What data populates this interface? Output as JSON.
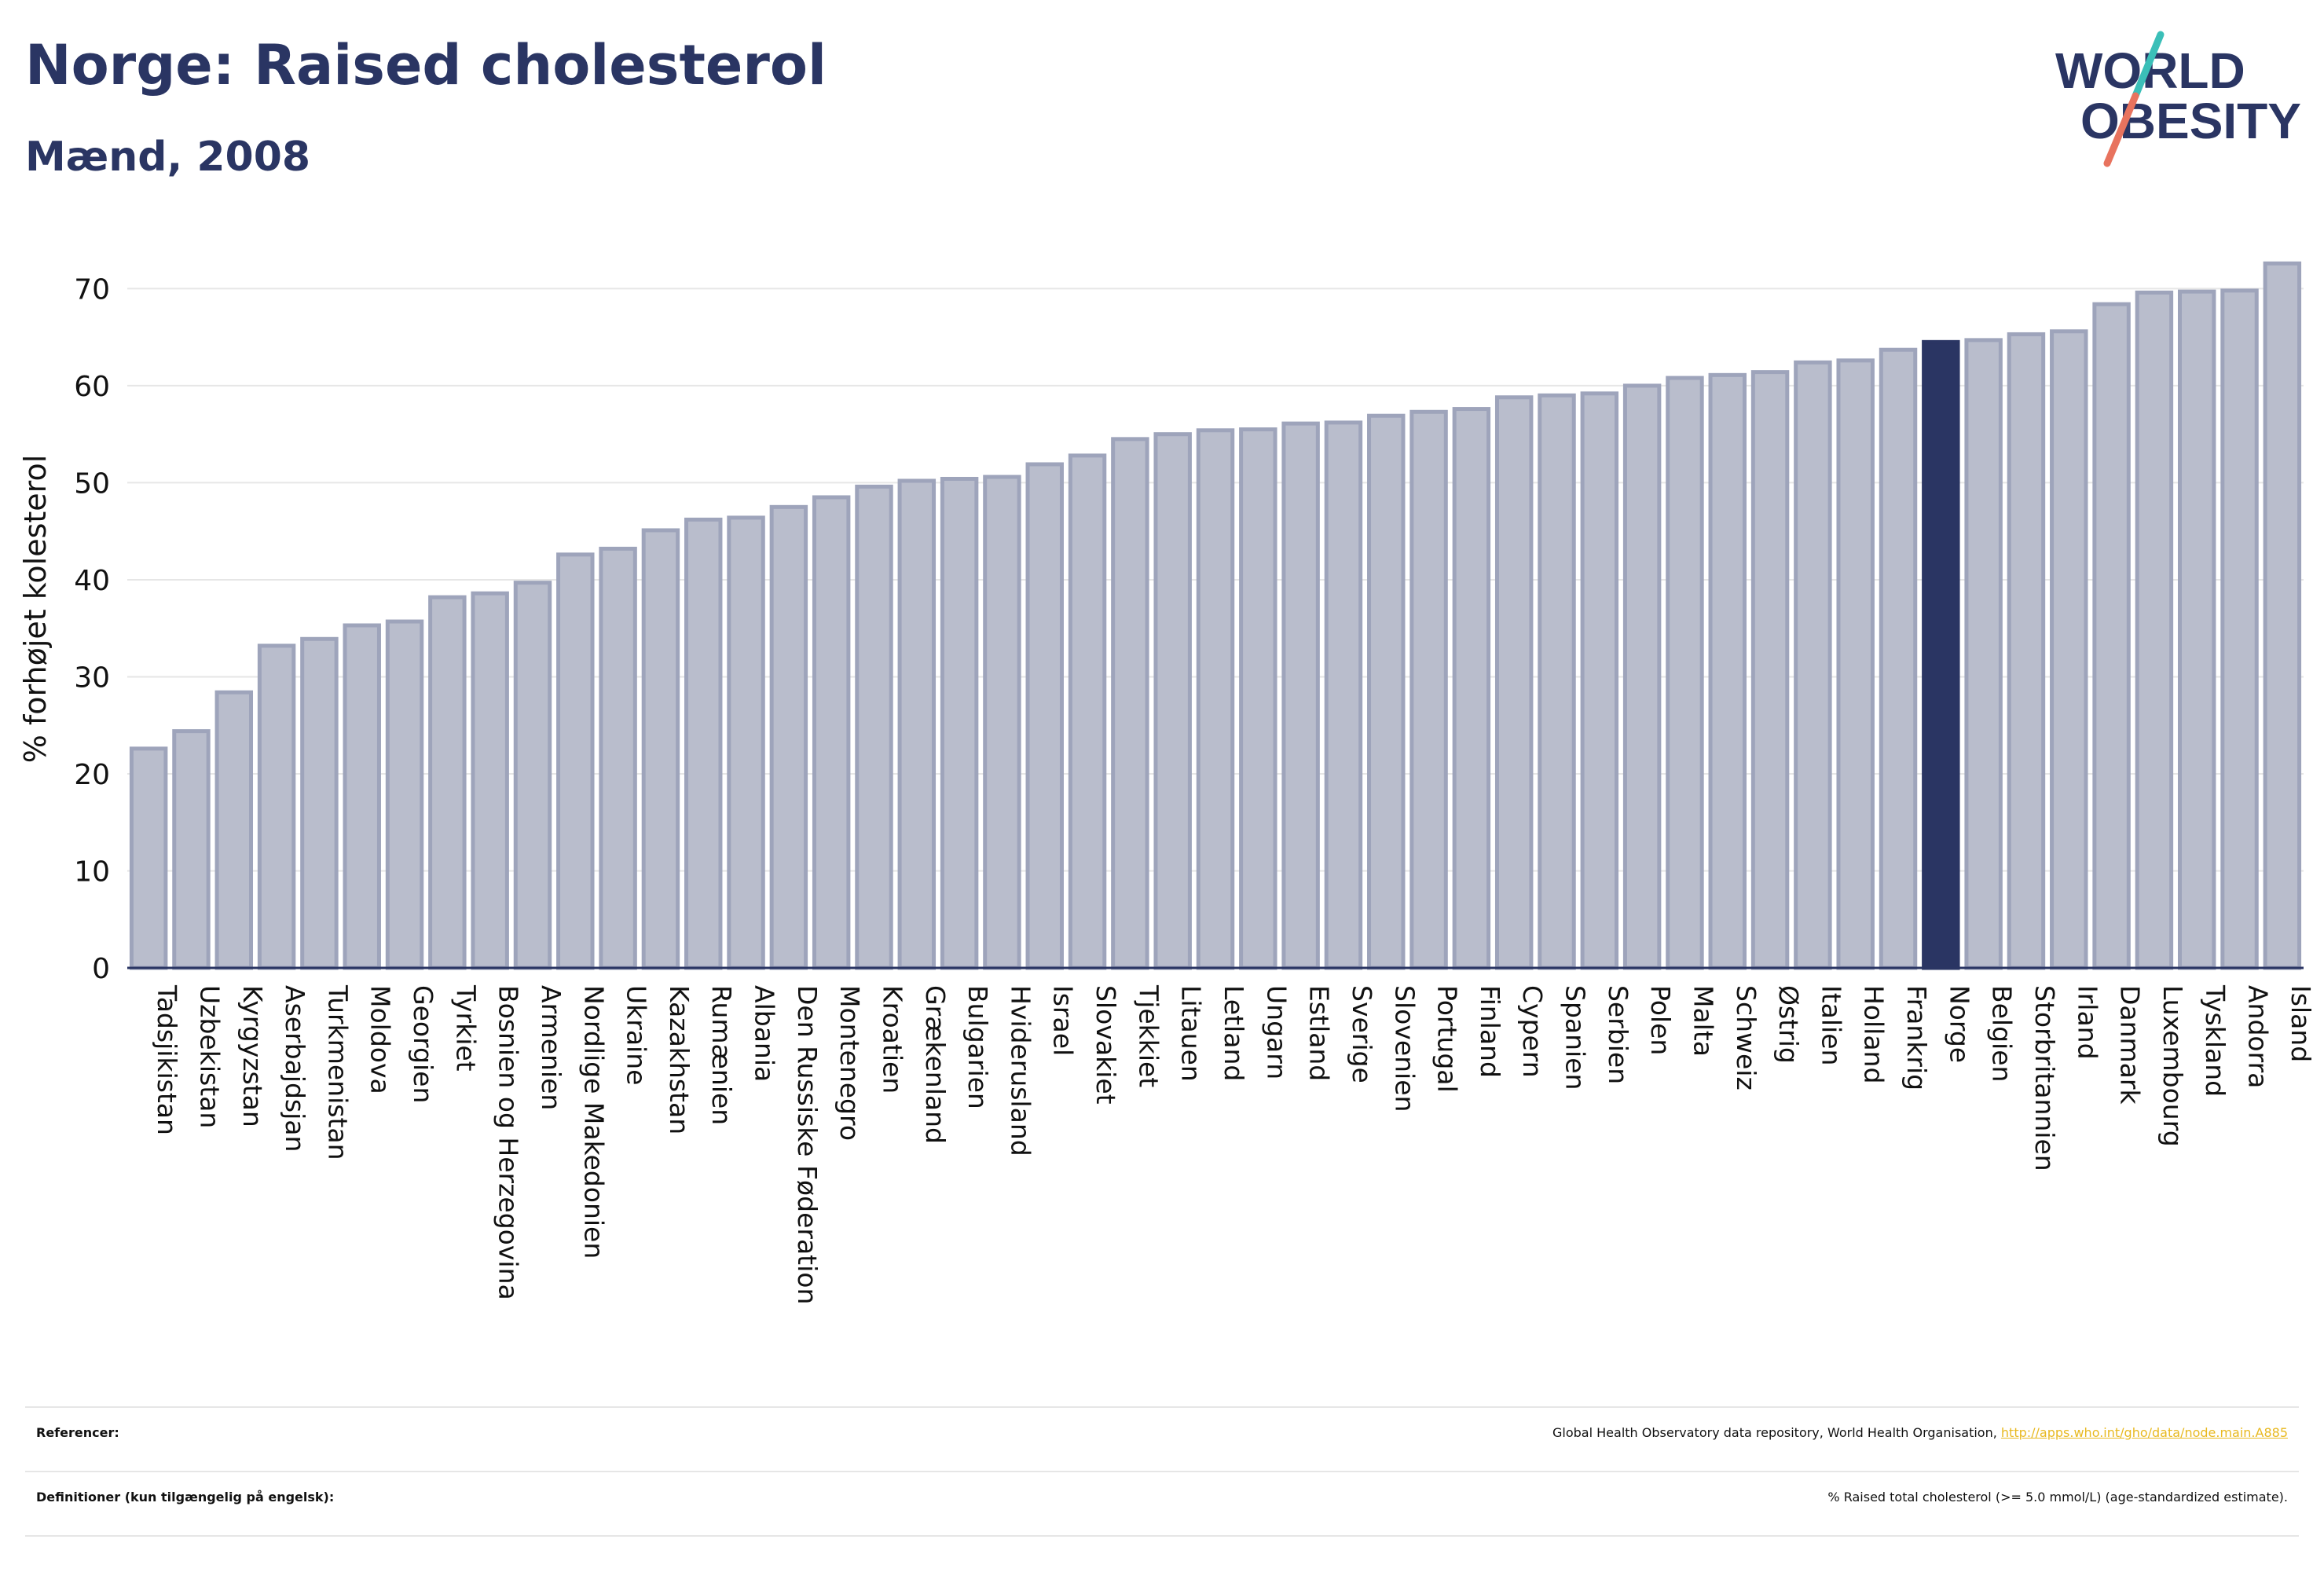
{
  "header": {
    "title": "Norge: Raised cholesterol",
    "subtitle": "Mænd, 2008"
  },
  "logo": {
    "line1": "WORLD",
    "line2": "OBESITY"
  },
  "colors": {
    "bar": "#b9bdcc",
    "bar_stroke": "#9ea4bb",
    "highlight": "#2a3563",
    "text": "#2a3563",
    "link": "#e8b920",
    "logo_slash_teal": "#3bbfb8",
    "logo_slash_coral": "#e8735e"
  },
  "chart_data": {
    "type": "bar",
    "ylabel": "% forhøjet kolesterol",
    "ylim": [
      0,
      74
    ],
    "yticks": [
      0,
      10,
      20,
      30,
      40,
      50,
      60,
      70
    ],
    "grid": true,
    "highlight": "Norge",
    "categories": [
      "Tadsjikistan",
      "Uzbekistan",
      "Kyrgyzstan",
      "Aserbajdsjan",
      "Turkmenistan",
      "Moldova",
      "Georgien",
      "Tyrkiet",
      "Bosnien og Herzegovina",
      "Armenien",
      "Nordlige Makedonien",
      "Ukraine",
      "Kazakhstan",
      "Rumænien",
      "Albania",
      "Den Russiske Føderation",
      "Montenegro",
      "Kroatien",
      "Grækenland",
      "Bulgarien",
      "Hviderusland",
      "Israel",
      "Slovakiet",
      "Tjekkiet",
      "Litauen",
      "Letland",
      "Ungarn",
      "Estland",
      "Sverige",
      "Slovenien",
      "Portugal",
      "Finland",
      "Cypern",
      "Spanien",
      "Serbien",
      "Polen",
      "Malta",
      "Schweiz",
      "Østrig",
      "Italien",
      "Holland",
      "Frankrig",
      "Norge",
      "Belgien",
      "Storbritannien",
      "Irland",
      "Danmark",
      "Luxembourg",
      "Tyskland",
      "Andorra",
      "Island"
    ],
    "values": [
      22.6,
      24.4,
      28.4,
      33.2,
      33.9,
      35.3,
      35.7,
      38.2,
      38.6,
      39.7,
      42.6,
      43.2,
      45.1,
      46.2,
      46.4,
      47.5,
      48.5,
      49.6,
      50.2,
      50.4,
      50.6,
      51.9,
      52.8,
      54.5,
      55.0,
      55.4,
      55.5,
      56.1,
      56.2,
      56.9,
      57.3,
      57.6,
      58.8,
      59.0,
      59.2,
      60.0,
      60.8,
      61.1,
      61.4,
      62.4,
      62.6,
      63.7,
      64.5,
      64.7,
      65.3,
      65.6,
      68.4,
      69.6,
      69.7,
      69.8,
      72.6
    ]
  },
  "footer": {
    "references_label": "Referencer:",
    "references_text": "Global Health Observatory data repository, World Health Organisation, ",
    "references_link": "http://apps.who.int/gho/data/node.main.A885",
    "definitions_label": "Definitioner (kun tilgængelig på engelsk):",
    "definitions_text": "% Raised total cholesterol (>= 5.0 mmol/L) (age-standardized estimate)."
  }
}
